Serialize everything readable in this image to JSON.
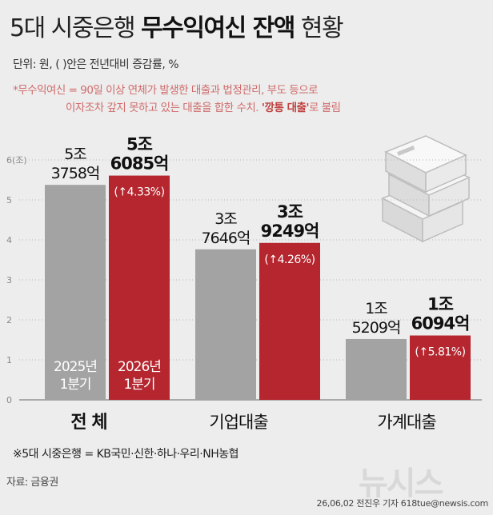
{
  "title": {
    "normal_part": "5대 시중은행 ",
    "bold_part": "무수익여신 잔액",
    "suffix": " 현황"
  },
  "unit_text": "단위: 원, ( )안은 전년대비 증감률, %",
  "note": {
    "line1": "*무수익여신 = 90일 이상 연체가 발생한 대출과 법정관리, 부도 등으로",
    "line2_prefix": "이자조차 갚지 못하고 있는 대출을 합한 수치. ",
    "line2_emphasis": "'깡통 대출'",
    "line2_suffix": "로 불림"
  },
  "footnote": "※5대 시중은행 = KB국민·신한·하나·우리·NH농협",
  "source": "자료: 금융권",
  "credit": "26,06,02 전진우 기자 618tue@newsis.com",
  "watermark": "뉴시스",
  "colors": {
    "bar_2025": "#a3a3a3",
    "bar_2026": "#b5262f",
    "background": "#ededed",
    "pct_text": "#ffffff"
  },
  "chart_data": {
    "type": "bar",
    "y_axis_unit_label": "6(조)",
    "ylim": [
      0,
      6
    ],
    "y_ticks": [
      "0",
      "1",
      "2",
      "3",
      "4",
      "5",
      "6(조)"
    ],
    "categories": [
      "전 체",
      "기업대출",
      "가계대출"
    ],
    "series": [
      {
        "name": "2025년 1분기",
        "values": [
          5.3758,
          3.7646,
          1.5209
        ],
        "labels": [
          [
            "5조",
            "3758억"
          ],
          [
            "3조",
            "7646억"
          ],
          [
            "1조",
            "5209억"
          ]
        ]
      },
      {
        "name": "2026년 1분기",
        "values": [
          5.6085,
          3.9249,
          1.6094
        ],
        "labels": [
          [
            "5조",
            "6085억"
          ],
          [
            "3조",
            "9249억"
          ],
          [
            "1조",
            "6094억"
          ]
        ],
        "changes": [
          "4.33%",
          "4.26%",
          "5.81%"
        ]
      }
    ],
    "in_bar_labels": [
      [
        "2025년",
        "1분기"
      ],
      [
        "2026년",
        "1분기"
      ]
    ]
  }
}
